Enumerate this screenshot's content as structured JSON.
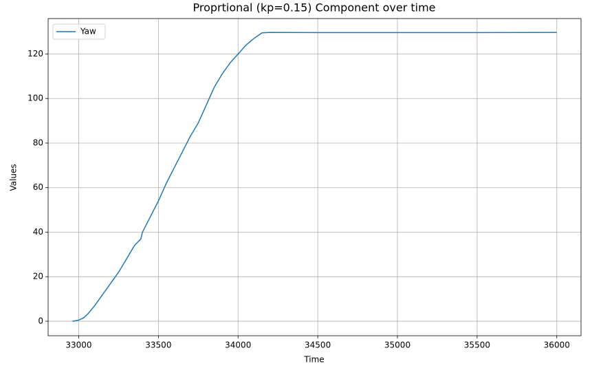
{
  "chart_data": {
    "type": "line",
    "title": "Proprtional (kp=0.15) Component over time",
    "x_label": "Time",
    "y_label": "Values",
    "x": [
      32960,
      33000,
      33030,
      33060,
      33100,
      33150,
      33200,
      33250,
      33300,
      33350,
      33390,
      33400,
      33450,
      33500,
      33550,
      33600,
      33650,
      33700,
      33750,
      33800,
      33850,
      33900,
      33950,
      34000,
      34050,
      34100,
      34150,
      34200,
      34500,
      35000,
      35500,
      36000
    ],
    "series": [
      {
        "name": "Yaw",
        "color": "#1f77b4",
        "values": [
          0,
          0.5,
          1.5,
          3.5,
          7,
          12,
          17,
          22,
          28,
          34,
          37,
          40,
          47,
          54,
          62,
          69,
          76,
          83,
          89,
          97,
          105,
          111,
          116,
          120,
          124,
          127,
          129.5,
          129.7,
          129.6,
          129.6,
          129.6,
          129.7
        ]
      }
    ],
    "xlim": [
      32808,
      36152
    ],
    "ylim": [
      -6.5,
      135.9
    ],
    "xticks": [
      33000,
      33500,
      34000,
      34500,
      35000,
      35500,
      36000
    ],
    "yticks": [
      0,
      20,
      40,
      60,
      80,
      100,
      120
    ],
    "grid": true,
    "legend": "upper left"
  }
}
